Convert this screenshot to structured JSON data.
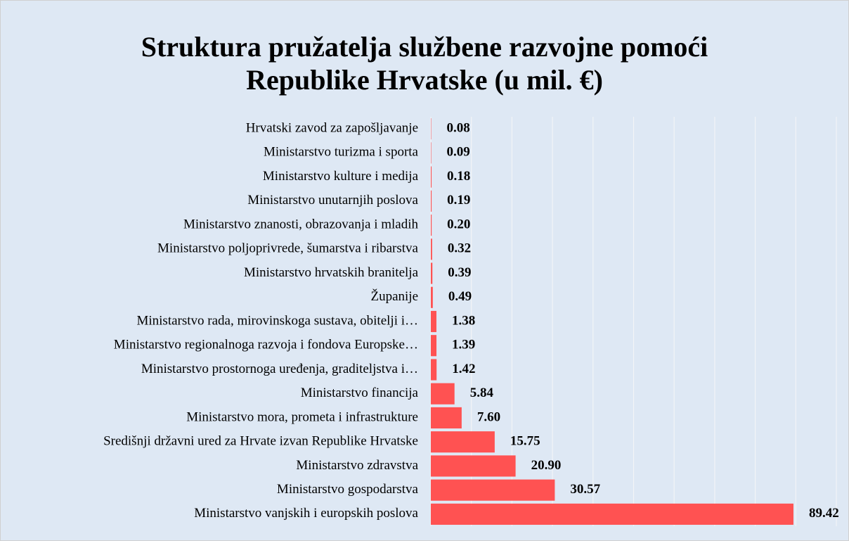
{
  "chart_data": {
    "type": "bar",
    "orientation": "horizontal",
    "title": "Struktura pružatelja službene razvojne pomoći Republike Hrvatske (u mil. €)",
    "categories": [
      "Hrvatski zavod za zapošljavanje",
      "Ministarstvo turizma i sporta",
      "Ministarstvo kulture i medija",
      "Ministarstvo unutarnjih poslova",
      "Ministarstvo znanosti, obrazovanja i mladih",
      "Ministarstvo poljoprivrede, šumarstva i ribarstva",
      "Ministarstvo hrvatskih branitelja",
      "Županije",
      "Ministarstvo rada, mirovinskoga sustava, obitelji i…",
      "Ministarstvo regionalnoga razvoja i fondova Europske…",
      "Ministarstvo prostornoga uređenja, graditeljstva i…",
      "Ministarstvo financija",
      "Ministarstvo mora, prometa i infrastrukture",
      "Središnji državni ured za Hrvate izvan Republike Hrvatske",
      "Ministarstvo zdravstva",
      "Ministarstvo gospodarstva",
      "Ministarstvo vanjskih i europskih poslova"
    ],
    "values": [
      0.08,
      0.09,
      0.18,
      0.19,
      0.2,
      0.32,
      0.39,
      0.49,
      1.38,
      1.39,
      1.42,
      5.84,
      7.6,
      15.75,
      20.9,
      30.57,
      89.42
    ],
    "value_labels": [
      "0.08",
      "0.09",
      "0.18",
      "0.19",
      "0.20",
      "0.32",
      "0.39",
      "0.49",
      "1.38",
      "1.39",
      "1.42",
      "5.84",
      "7.60",
      "15.75",
      "20.90",
      "30.57",
      "89.42"
    ],
    "color": "#ff5252",
    "xlim": [
      0,
      100
    ],
    "xticks": [
      0,
      10,
      20,
      30,
      40,
      50,
      60,
      70,
      80,
      90,
      100
    ],
    "grid": true
  }
}
